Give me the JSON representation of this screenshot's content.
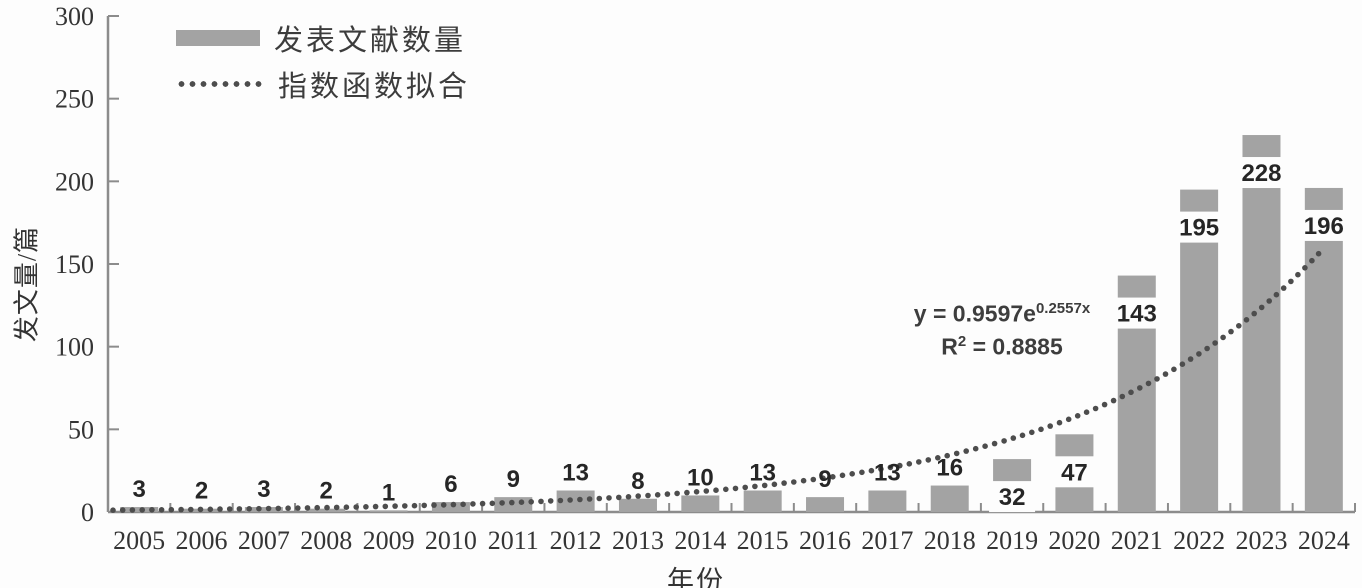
{
  "chart_data": {
    "type": "bar",
    "title": "",
    "xlabel": "年份",
    "ylabel": "发文量/篇",
    "categories": [
      "2005",
      "2006",
      "2007",
      "2008",
      "2009",
      "2010",
      "2011",
      "2012",
      "2013",
      "2014",
      "2015",
      "2016",
      "2017",
      "2018",
      "2019",
      "2020",
      "2021",
      "2022",
      "2023",
      "2024"
    ],
    "series": [
      {
        "name": "发表文献数量",
        "type": "bar",
        "values": [
          3,
          2,
          3,
          2,
          1,
          6,
          9,
          13,
          8,
          10,
          13,
          9,
          13,
          16,
          32,
          47,
          143,
          195,
          228,
          196
        ]
      },
      {
        "name": "指数函数拟合",
        "type": "dotted-line",
        "fit": {
          "model": "exponential",
          "a": 0.9597,
          "b": 0.2557,
          "r_squared": 0.8885
        }
      }
    ],
    "ylim": [
      0,
      300
    ],
    "ytick_step": 50,
    "grid": false,
    "legend_position": "top-left-inside",
    "data_labels": true,
    "inside_label_threshold": 32
  },
  "legend": {
    "items": [
      {
        "label": "发表文献数量",
        "swatch": "bar"
      },
      {
        "label": "指数函数拟合",
        "swatch": "dotted-line"
      }
    ]
  },
  "annotation": {
    "eq_base": "y = 0.9597e",
    "eq_exponent": "0.2557x",
    "r2_base": "R",
    "r2_sup": "2",
    "r2_rest": " = 0.8885"
  },
  "colors": {
    "bar": "#a3a3a3",
    "fit_dots": "#4d4d4d",
    "axis": "#8c8c8c",
    "tick_text": "#343434",
    "data_label_text": "#262626",
    "label_box": "#fdfdfd"
  }
}
